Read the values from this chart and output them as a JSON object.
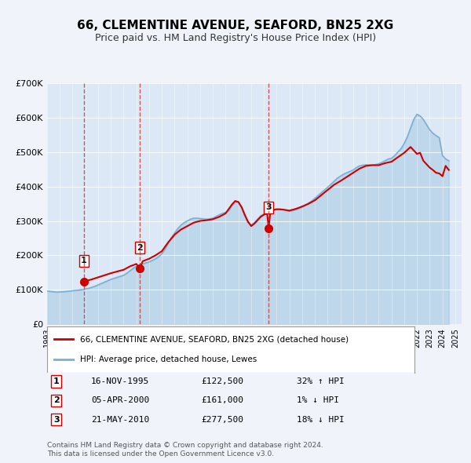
{
  "title": "66, CLEMENTINE AVENUE, SEAFORD, BN25 2XG",
  "subtitle": "Price paid vs. HM Land Registry's House Price Index (HPI)",
  "title_fontsize": 11,
  "subtitle_fontsize": 9,
  "bg_color": "#f0f4fa",
  "plot_bg_color": "#dce8f5",
  "hpi_color": "#7ab0d4",
  "price_color": "#cc0000",
  "marker_color": "#cc0000",
  "vline_color": "#cc3333",
  "ylim": [
    0,
    700000
  ],
  "yticks": [
    0,
    100000,
    200000,
    300000,
    400000,
    500000,
    600000,
    700000
  ],
  "ytick_labels": [
    "£0",
    "£100K",
    "£200K",
    "£300K",
    "£400K",
    "£500K",
    "£600K",
    "£700K"
  ],
  "xlim_start": 1993.0,
  "xlim_end": 2025.5,
  "purchases": [
    {
      "year": 1995.88,
      "price": 122500,
      "label": "1"
    },
    {
      "year": 2000.26,
      "price": 161000,
      "label": "2"
    },
    {
      "year": 2010.38,
      "price": 277500,
      "label": "3"
    }
  ],
  "legend_entries": [
    {
      "label": "66, CLEMENTINE AVENUE, SEAFORD, BN25 2XG (detached house)",
      "color": "#cc0000",
      "lw": 2
    },
    {
      "label": "HPI: Average price, detached house, Lewes",
      "color": "#7ab0d4",
      "lw": 2
    }
  ],
  "table_rows": [
    {
      "num": "1",
      "date": "16-NOV-1995",
      "price": "£122,500",
      "hpi": "32% ↑ HPI"
    },
    {
      "num": "2",
      "date": "05-APR-2000",
      "price": "£161,000",
      "hpi": "1% ↓ HPI"
    },
    {
      "num": "3",
      "date": "21-MAY-2010",
      "price": "£277,500",
      "hpi": "18% ↓ HPI"
    }
  ],
  "footer": "Contains HM Land Registry data © Crown copyright and database right 2024.\nThis data is licensed under the Open Government Licence v3.0.",
  "hpi_data": {
    "years": [
      1993.0,
      1993.25,
      1993.5,
      1993.75,
      1994.0,
      1994.25,
      1994.5,
      1994.75,
      1995.0,
      1995.25,
      1995.5,
      1995.75,
      1996.0,
      1996.25,
      1996.5,
      1996.75,
      1997.0,
      1997.25,
      1997.5,
      1997.75,
      1998.0,
      1998.25,
      1998.5,
      1998.75,
      1999.0,
      1999.25,
      1999.5,
      1999.75,
      2000.0,
      2000.25,
      2000.5,
      2000.75,
      2001.0,
      2001.25,
      2001.5,
      2001.75,
      2002.0,
      2002.25,
      2002.5,
      2002.75,
      2003.0,
      2003.25,
      2003.5,
      2003.75,
      2004.0,
      2004.25,
      2004.5,
      2004.75,
      2005.0,
      2005.25,
      2005.5,
      2005.75,
      2006.0,
      2006.25,
      2006.5,
      2006.75,
      2007.0,
      2007.25,
      2007.5,
      2007.75,
      2008.0,
      2008.25,
      2008.5,
      2008.75,
      2009.0,
      2009.25,
      2009.5,
      2009.75,
      2010.0,
      2010.25,
      2010.5,
      2010.75,
      2011.0,
      2011.25,
      2011.5,
      2011.75,
      2012.0,
      2012.25,
      2012.5,
      2012.75,
      2013.0,
      2013.25,
      2013.5,
      2013.75,
      2014.0,
      2014.25,
      2014.5,
      2014.75,
      2015.0,
      2015.25,
      2015.5,
      2015.75,
      2016.0,
      2016.25,
      2016.5,
      2016.75,
      2017.0,
      2017.25,
      2017.5,
      2017.75,
      2018.0,
      2018.25,
      2018.5,
      2018.75,
      2019.0,
      2019.25,
      2019.5,
      2019.75,
      2020.0,
      2020.25,
      2020.5,
      2020.75,
      2021.0,
      2021.25,
      2021.5,
      2021.75,
      2022.0,
      2022.25,
      2022.5,
      2022.75,
      2023.0,
      2023.25,
      2023.5,
      2023.75,
      2024.0,
      2024.25,
      2024.5
    ],
    "values": [
      96000,
      95000,
      94000,
      93000,
      93500,
      94000,
      95000,
      96000,
      97000,
      98000,
      99000,
      100000,
      102000,
      104000,
      107000,
      110000,
      114000,
      118000,
      122000,
      126000,
      130000,
      133000,
      136000,
      139000,
      142000,
      148000,
      155000,
      162000,
      168000,
      172000,
      175000,
      178000,
      181000,
      185000,
      190000,
      196000,
      205000,
      218000,
      235000,
      252000,
      265000,
      278000,
      288000,
      295000,
      300000,
      305000,
      308000,
      308000,
      307000,
      306000,
      305000,
      306000,
      308000,
      313000,
      318000,
      322000,
      325000,
      330000,
      345000,
      355000,
      355000,
      340000,
      315000,
      295000,
      288000,
      295000,
      305000,
      315000,
      320000,
      325000,
      330000,
      332000,
      333000,
      335000,
      333000,
      330000,
      328000,
      330000,
      333000,
      336000,
      340000,
      345000,
      352000,
      358000,
      366000,
      374000,
      382000,
      390000,
      398000,
      406000,
      415000,
      424000,
      430000,
      436000,
      440000,
      444000,
      448000,
      455000,
      460000,
      462000,
      463000,
      463000,
      463000,
      464000,
      466000,
      470000,
      475000,
      480000,
      482000,
      490000,
      500000,
      510000,
      525000,
      545000,
      570000,
      595000,
      610000,
      605000,
      595000,
      580000,
      565000,
      555000,
      548000,
      542000,
      490000,
      480000,
      475000
    ]
  },
  "price_line_data": {
    "years": [
      1993.0,
      1993.5,
      1994.0,
      1994.5,
      1995.0,
      1995.5,
      1995.88,
      1996.0,
      1996.5,
      1997.0,
      1997.5,
      1998.0,
      1998.5,
      1999.0,
      1999.5,
      2000.0,
      2000.26,
      2000.5,
      2001.0,
      2001.5,
      2002.0,
      2002.5,
      2003.0,
      2003.5,
      2004.0,
      2004.5,
      2005.0,
      2005.5,
      2006.0,
      2006.5,
      2007.0,
      2007.25,
      2007.5,
      2007.75,
      2008.0,
      2008.25,
      2008.5,
      2008.75,
      2009.0,
      2009.25,
      2009.5,
      2009.75,
      2010.0,
      2010.25,
      2010.38,
      2010.5,
      2010.75,
      2011.0,
      2011.5,
      2012.0,
      2012.5,
      2013.0,
      2013.5,
      2014.0,
      2014.5,
      2015.0,
      2015.5,
      2016.0,
      2016.5,
      2017.0,
      2017.5,
      2018.0,
      2018.5,
      2019.0,
      2019.5,
      2020.0,
      2020.5,
      2021.0,
      2021.5,
      2022.0,
      2022.25,
      2022.5,
      2022.75,
      2023.0,
      2023.25,
      2023.5,
      2023.75,
      2024.0,
      2024.25,
      2024.5
    ],
    "values": [
      null,
      null,
      null,
      null,
      null,
      null,
      122500,
      125000,
      130000,
      136000,
      142000,
      148000,
      153000,
      158000,
      168000,
      175000,
      161000,
      183000,
      190000,
      200000,
      212000,
      238000,
      260000,
      275000,
      285000,
      295000,
      300000,
      302000,
      305000,
      312000,
      322000,
      335000,
      348000,
      358000,
      355000,
      340000,
      318000,
      298000,
      285000,
      292000,
      302000,
      312000,
      318000,
      322000,
      277500,
      328000,
      332000,
      334000,
      333000,
      330000,
      335000,
      342000,
      350000,
      360000,
      375000,
      390000,
      405000,
      416000,
      428000,
      440000,
      452000,
      460000,
      462000,
      462000,
      468000,
      472000,
      485000,
      498000,
      515000,
      495000,
      498000,
      475000,
      465000,
      455000,
      448000,
      440000,
      438000,
      430000,
      460000,
      448000
    ]
  }
}
